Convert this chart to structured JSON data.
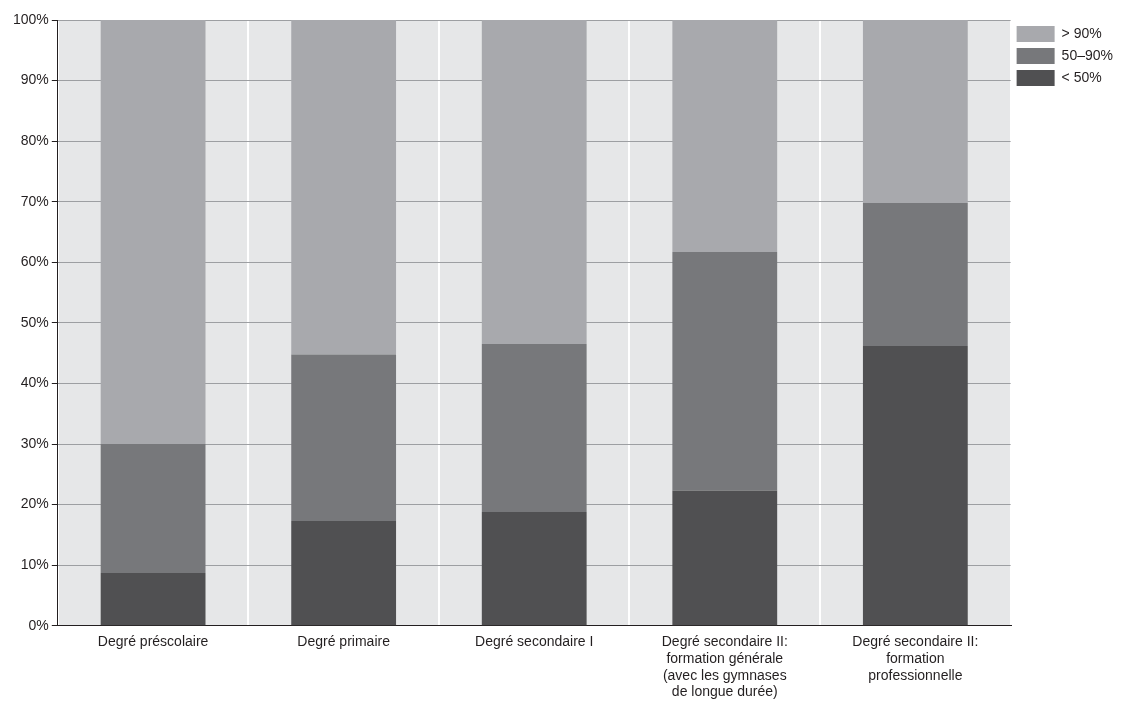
{
  "chart_data": {
    "type": "bar",
    "stacked": true,
    "categories": [
      "Degré préscolaire",
      "Degré primaire",
      "Degré secondaire I",
      "Degré secondaire II: formation générale (avec les gymnases de longue durée)",
      "Degré secondaire II: formation professionnelle"
    ],
    "series": [
      {
        "name": "< 50%",
        "color": "#505052",
        "values": [
          8.7,
          17.3,
          18.8,
          22.3,
          46.2
        ]
      },
      {
        "name": "50–90%",
        "color": "#77787b",
        "values": [
          21.3,
          27.5,
          27.7,
          39.4,
          23.6
        ]
      },
      {
        "name": "> 90%",
        "color": "#a8a9ad",
        "values": [
          70,
          55.2,
          53.5,
          38.3,
          30.2
        ]
      }
    ],
    "ylim": [
      0,
      100
    ],
    "yticks": [
      {
        "value": 0,
        "label": "0%"
      },
      {
        "value": 10,
        "label": "10%"
      },
      {
        "value": 20,
        "label": "20%"
      },
      {
        "value": 30,
        "label": "30%"
      },
      {
        "value": 40,
        "label": "40%"
      },
      {
        "value": 50,
        "label": "50%"
      },
      {
        "value": 60,
        "label": "60%"
      },
      {
        "value": 70,
        "label": "70%"
      },
      {
        "value": 80,
        "label": "80%"
      },
      {
        "value": 90,
        "label": "90%"
      },
      {
        "value": 100,
        "label": "100%"
      }
    ],
    "grid": true,
    "legend": "top right"
  }
}
